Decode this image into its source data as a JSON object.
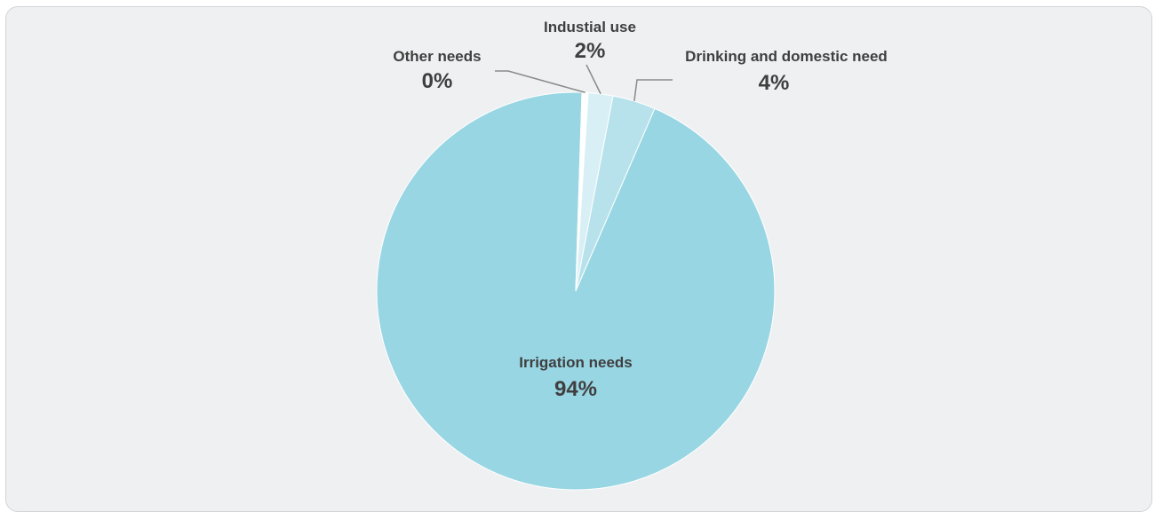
{
  "chart_data": {
    "type": "pie",
    "title": "",
    "slices": [
      {
        "label": "Irrigation needs",
        "value": 94,
        "value_label": "94%",
        "color": "#98d6e3"
      },
      {
        "label": "Drinking and domestic need",
        "value": 3.5,
        "value_label": "4%",
        "color": "#b7e2eb"
      },
      {
        "label": "Industial use",
        "value": 2.0,
        "value_label": "2%",
        "color": "#d8f0f5"
      },
      {
        "label": "Other needs",
        "value": 0.5,
        "value_label": "0%",
        "color": "#ffffff"
      }
    ],
    "legend": "none",
    "leader_line_color": "#8a8a8a",
    "text_color": "#3f3f3f"
  }
}
